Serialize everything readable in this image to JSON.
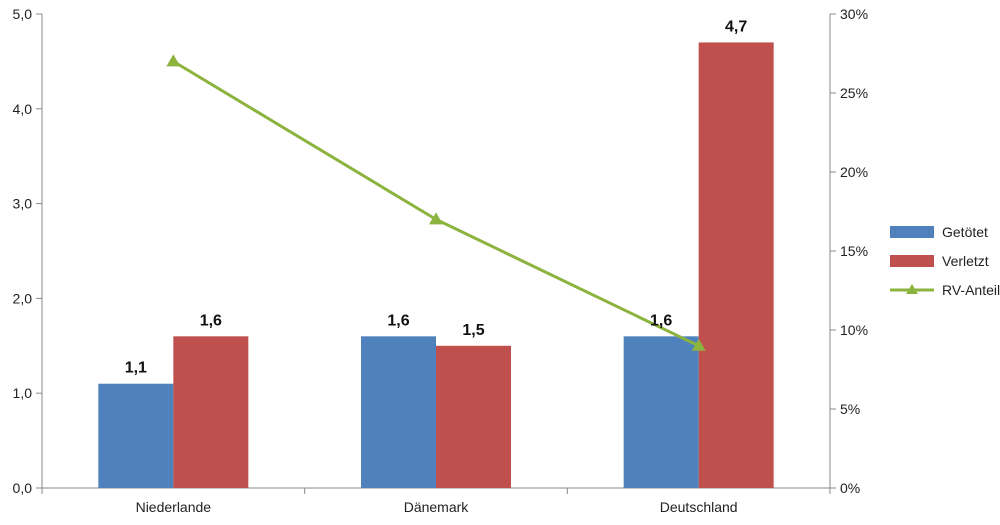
{
  "chart_data": {
    "type": "bar",
    "categories": [
      "Niederlande",
      "Dänemark",
      "Deutschland"
    ],
    "series": [
      {
        "name": "Getötet",
        "values": [
          1.1,
          1.6,
          1.6
        ],
        "color": "#4F81BD",
        "labels": [
          "1,1",
          "1,6",
          "1,6"
        ],
        "axis": "left"
      },
      {
        "name": "Verletzt",
        "values": [
          1.6,
          1.5,
          4.7
        ],
        "color": "#C0504D",
        "labels": [
          "1,6",
          "1,5",
          "4,7"
        ],
        "axis": "left"
      },
      {
        "name": "RV-Anteil",
        "type": "line",
        "marker": "triangle",
        "values": [
          27,
          17,
          9
        ],
        "color": "#8DB33F",
        "axis": "right"
      }
    ],
    "y_left": {
      "min": 0,
      "max": 5,
      "step": 1,
      "ticks": [
        "0,0",
        "1,0",
        "2,0",
        "3,0",
        "4,0",
        "5,0"
      ]
    },
    "y_right": {
      "min": 0,
      "max": 30,
      "step": 5,
      "ticks": [
        "0%",
        "5%",
        "10%",
        "15%",
        "20%",
        "25%",
        "30%"
      ]
    },
    "title": "",
    "xlabel": "",
    "ylabel": "",
    "grid": false,
    "legend_position": "right"
  }
}
